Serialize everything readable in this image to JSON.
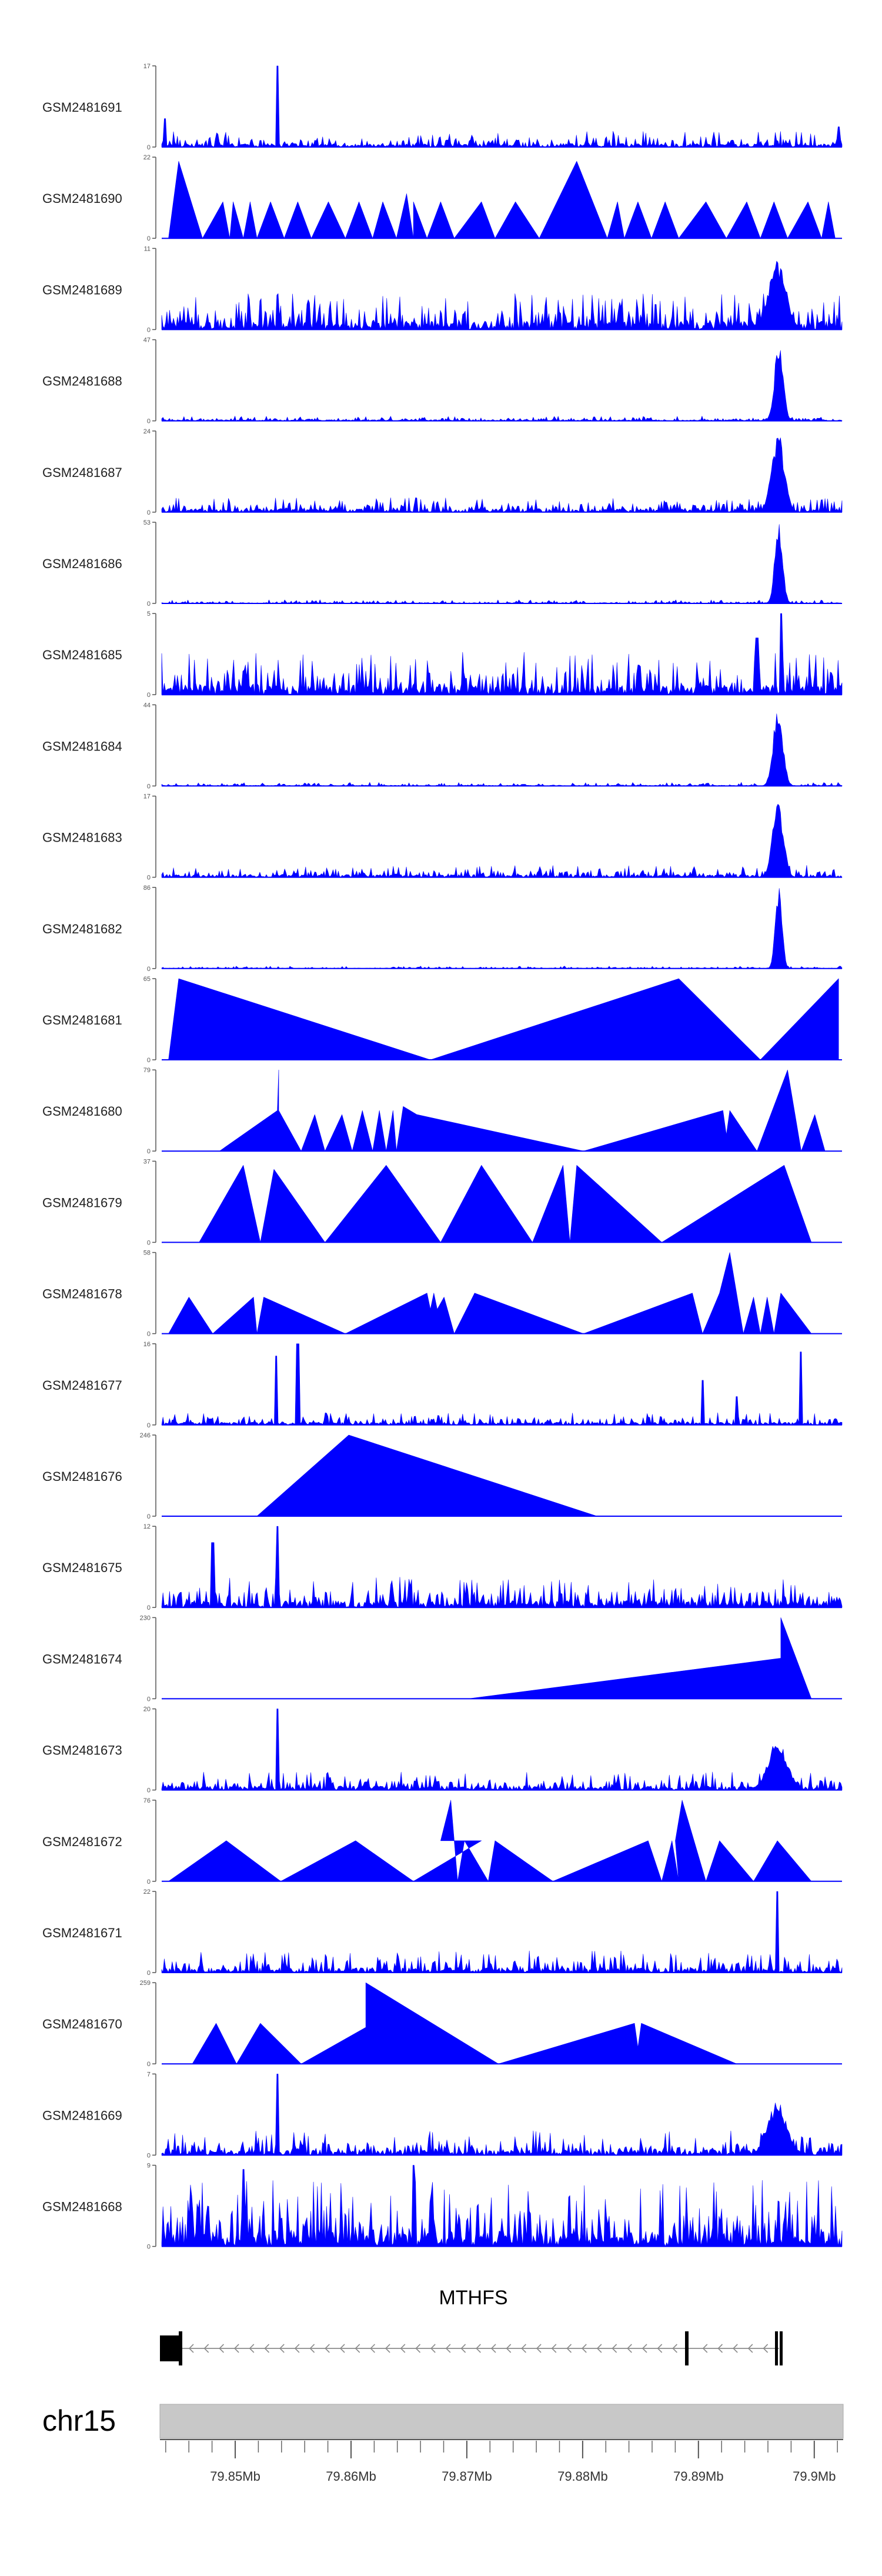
{
  "chart_data": {
    "type": "area",
    "title": "",
    "gene": "MTHFS",
    "chromosome": "chr15",
    "x_ticks": [
      "79.85Mb",
      "79.86Mb",
      "79.87Mb",
      "79.88Mb",
      "79.89Mb",
      "79.9Mb"
    ],
    "x_tick_values": [
      79.85,
      79.86,
      79.87,
      79.88,
      79.89,
      79.9
    ],
    "xlim": [
      79.8435,
      79.9025
    ],
    "colors": {
      "fill": "#0000ff",
      "axis": "#555555",
      "gene": "#000000",
      "ideogram": "#c8c8c8"
    },
    "series": [
      {
        "name": "GSM2481691",
        "ymax": "17",
        "profile": "noise",
        "seed": 91,
        "base": 0.13,
        "spikes": [
          [
            0.17,
            1.0
          ],
          [
            0.005,
            0.35
          ],
          [
            0.995,
            0.25
          ]
        ]
      },
      {
        "name": "GSM2481690",
        "ymax": "22",
        "profile": "tri",
        "points": [
          [
            0.01,
            0
          ],
          [
            0.025,
            0.95
          ],
          [
            0.06,
            0
          ],
          [
            0.09,
            0.45
          ],
          [
            0.1,
            0
          ],
          [
            0.105,
            0.45
          ],
          [
            0.12,
            0
          ],
          [
            0.13,
            0.45
          ],
          [
            0.14,
            0
          ],
          [
            0.16,
            0.45
          ],
          [
            0.18,
            0
          ],
          [
            0.2,
            0.45
          ],
          [
            0.22,
            0
          ],
          [
            0.245,
            0.45
          ],
          [
            0.27,
            0
          ],
          [
            0.29,
            0.45
          ],
          [
            0.31,
            0
          ],
          [
            0.325,
            0.45
          ],
          [
            0.345,
            0
          ],
          [
            0.36,
            0.55
          ],
          [
            0.37,
            0
          ],
          [
            0.37,
            0.45
          ],
          [
            0.39,
            0
          ],
          [
            0.41,
            0.45
          ],
          [
            0.43,
            0
          ],
          [
            0.47,
            0.45
          ],
          [
            0.49,
            0
          ],
          [
            0.52,
            0.45
          ],
          [
            0.555,
            0
          ],
          [
            0.61,
            0.95
          ],
          [
            0.655,
            0
          ],
          [
            0.67,
            0.45
          ],
          [
            0.68,
            0
          ],
          [
            0.7,
            0.45
          ],
          [
            0.72,
            0
          ],
          [
            0.74,
            0.45
          ],
          [
            0.76,
            0
          ],
          [
            0.8,
            0.45
          ],
          [
            0.83,
            0
          ],
          [
            0.86,
            0.45
          ],
          [
            0.88,
            0
          ],
          [
            0.9,
            0.45
          ],
          [
            0.92,
            0
          ],
          [
            0.95,
            0.45
          ],
          [
            0.97,
            0
          ],
          [
            0.98,
            0.45
          ],
          [
            0.99,
            0
          ]
        ]
      },
      {
        "name": "GSM2481689",
        "ymax": "11",
        "profile": "noise",
        "seed": 89,
        "base": 0.3,
        "spikes": [],
        "peak": [
          0.905,
          0.018,
          0.85
        ]
      },
      {
        "name": "GSM2481688",
        "ymax": "47",
        "profile": "noise",
        "seed": 88,
        "base": 0.04,
        "spikes": [],
        "peak": [
          0.907,
          0.009,
          0.95
        ]
      },
      {
        "name": "GSM2481687",
        "ymax": "24",
        "profile": "noise",
        "seed": 87,
        "base": 0.12,
        "spikes": [],
        "peak": [
          0.906,
          0.013,
          0.95
        ]
      },
      {
        "name": "GSM2481686",
        "ymax": "53",
        "profile": "noise",
        "seed": 86,
        "base": 0.03,
        "spikes": [],
        "peak": [
          0.907,
          0.008,
          0.98
        ]
      },
      {
        "name": "GSM2481685",
        "ymax": "5",
        "profile": "noise",
        "seed": 85,
        "base": 0.35,
        "spikes": [
          [
            0.91,
            1.0
          ],
          [
            0.875,
            0.7
          ]
        ]
      },
      {
        "name": "GSM2481684",
        "ymax": "44",
        "profile": "noise",
        "seed": 84,
        "base": 0.03,
        "spikes": [],
        "peak": [
          0.906,
          0.01,
          0.95
        ]
      },
      {
        "name": "GSM2481683",
        "ymax": "17",
        "profile": "noise",
        "seed": 83,
        "base": 0.1,
        "spikes": [],
        "peak": [
          0.906,
          0.011,
          0.95
        ]
      },
      {
        "name": "GSM2481682",
        "ymax": "86",
        "profile": "noise",
        "seed": 82,
        "base": 0.02,
        "spikes": [],
        "peak": [
          0.907,
          0.007,
          0.98
        ]
      },
      {
        "name": "GSM2481681",
        "ymax": "65",
        "profile": "tri",
        "points": [
          [
            0.01,
            0
          ],
          [
            0.025,
            1.0
          ],
          [
            0.395,
            0
          ],
          [
            0.76,
            1.0
          ],
          [
            0.88,
            0
          ],
          [
            0.995,
            1.0
          ],
          [
            0.995,
            0
          ]
        ]
      },
      {
        "name": "GSM2481680",
        "ymax": "79",
        "profile": "tri",
        "points": [
          [
            0.085,
            0
          ],
          [
            0.17,
            0.5
          ],
          [
            0.172,
            1.0
          ],
          [
            0.172,
            0.5
          ],
          [
            0.205,
            0
          ],
          [
            0.225,
            0.45
          ],
          [
            0.24,
            0
          ],
          [
            0.265,
            0.45
          ],
          [
            0.28,
            0
          ],
          [
            0.295,
            0.5
          ],
          [
            0.31,
            0
          ],
          [
            0.32,
            0.5
          ],
          [
            0.33,
            0
          ],
          [
            0.34,
            0.5
          ],
          [
            0.345,
            0
          ],
          [
            0.355,
            0.55
          ],
          [
            0.375,
            0.45
          ],
          [
            0.62,
            0
          ],
          [
            0.825,
            0.5
          ],
          [
            0.83,
            0.2
          ],
          [
            0.835,
            0.5
          ],
          [
            0.875,
            0
          ],
          [
            0.92,
            1.0
          ],
          [
            0.94,
            0
          ],
          [
            0.96,
            0.45
          ],
          [
            0.975,
            0
          ]
        ]
      },
      {
        "name": "GSM2481679",
        "ymax": "37",
        "profile": "tri",
        "points": [
          [
            0.055,
            0
          ],
          [
            0.12,
            0.95
          ],
          [
            0.145,
            0
          ],
          [
            0.165,
            0.9
          ],
          [
            0.24,
            0
          ],
          [
            0.33,
            0.95
          ],
          [
            0.41,
            0
          ],
          [
            0.47,
            0.95
          ],
          [
            0.545,
            0
          ],
          [
            0.59,
            0.95
          ],
          [
            0.6,
            0
          ],
          [
            0.61,
            0.95
          ],
          [
            0.735,
            0
          ],
          [
            0.915,
            0.95
          ],
          [
            0.955,
            0
          ]
        ]
      },
      {
        "name": "GSM2481678",
        "ymax": "58",
        "profile": "tri",
        "points": [
          [
            0.01,
            0
          ],
          [
            0.04,
            0.45
          ],
          [
            0.075,
            0
          ],
          [
            0.135,
            0.45
          ],
          [
            0.14,
            0
          ],
          [
            0.15,
            0.45
          ],
          [
            0.27,
            0
          ],
          [
            0.39,
            0.5
          ],
          [
            0.395,
            0.3
          ],
          [
            0.4,
            0.5
          ],
          [
            0.405,
            0.3
          ],
          [
            0.415,
            0.45
          ],
          [
            0.43,
            0
          ],
          [
            0.46,
            0.5
          ],
          [
            0.62,
            0
          ],
          [
            0.78,
            0.5
          ],
          [
            0.795,
            0
          ],
          [
            0.82,
            0.5
          ],
          [
            0.835,
            1.0
          ],
          [
            0.855,
            0
          ],
          [
            0.87,
            0.45
          ],
          [
            0.88,
            0
          ],
          [
            0.89,
            0.45
          ],
          [
            0.9,
            0
          ],
          [
            0.91,
            0.5
          ],
          [
            0.955,
            0
          ]
        ]
      },
      {
        "name": "GSM2481677",
        "ymax": "16",
        "profile": "noise",
        "seed": 77,
        "base": 0.1,
        "spikes": [
          [
            0.168,
            0.85
          ],
          [
            0.2,
            1.0
          ],
          [
            0.795,
            0.55
          ],
          [
            0.94,
            0.9
          ],
          [
            0.845,
            0.35
          ]
        ]
      },
      {
        "name": "GSM2481676",
        "ymax": "246",
        "profile": "tri",
        "points": [
          [
            0.14,
            0
          ],
          [
            0.275,
            1.0
          ],
          [
            0.64,
            0
          ]
        ]
      },
      {
        "name": "GSM2481675",
        "ymax": "12",
        "profile": "noise",
        "seed": 75,
        "base": 0.25,
        "spikes": [
          [
            0.17,
            1.0
          ],
          [
            0.075,
            0.8
          ]
        ]
      },
      {
        "name": "GSM2481674",
        "ymax": "230",
        "profile": "tri",
        "points": [
          [
            0.45,
            0
          ],
          [
            0.91,
            0.5
          ],
          [
            0.91,
            1.0
          ],
          [
            0.955,
            0
          ]
        ]
      },
      {
        "name": "GSM2481673",
        "ymax": "20",
        "profile": "noise",
        "seed": 73,
        "base": 0.15,
        "spikes": [
          [
            0.17,
            1.0
          ]
        ],
        "peak": [
          0.905,
          0.02,
          0.6
        ]
      },
      {
        "name": "GSM2481672",
        "ymax": "76",
        "profile": "tri",
        "points": [
          [
            0.01,
            0
          ],
          [
            0.095,
            0.5
          ],
          [
            0.175,
            0
          ],
          [
            0.285,
            0.5
          ],
          [
            0.37,
            0
          ],
          [
            0.47,
            0.5
          ],
          [
            0.41,
            0.5
          ],
          [
            0.425,
            1.0
          ],
          [
            0.435,
            0
          ],
          [
            0.445,
            0.5
          ],
          [
            0.48,
            0
          ],
          [
            0.49,
            0.5
          ],
          [
            0.575,
            0
          ],
          [
            0.715,
            0.5
          ],
          [
            0.735,
            0
          ],
          [
            0.75,
            0.5
          ],
          [
            0.76,
            0
          ],
          [
            0.755,
            0.5
          ],
          [
            0.765,
            1.0
          ],
          [
            0.8,
            0
          ],
          [
            0.82,
            0.5
          ],
          [
            0.87,
            0
          ],
          [
            0.905,
            0.5
          ],
          [
            0.955,
            0
          ]
        ]
      },
      {
        "name": "GSM2481671",
        "ymax": "22",
        "profile": "noise",
        "seed": 71,
        "base": 0.18,
        "spikes": [
          [
            0.905,
            1.0
          ]
        ]
      },
      {
        "name": "GSM2481670",
        "ymax": "259",
        "profile": "tri",
        "points": [
          [
            0.045,
            0
          ],
          [
            0.08,
            0.5
          ],
          [
            0.11,
            0
          ],
          [
            0.145,
            0.5
          ],
          [
            0.205,
            0
          ],
          [
            0.3,
            0.45
          ],
          [
            0.3,
            1.0
          ],
          [
            0.495,
            0
          ],
          [
            0.695,
            0.5
          ],
          [
            0.7,
            0.2
          ],
          [
            0.705,
            0.5
          ],
          [
            0.845,
            0
          ]
        ]
      },
      {
        "name": "GSM2481669",
        "ymax": "7",
        "profile": "noise",
        "seed": 69,
        "base": 0.2,
        "spikes": [
          [
            0.17,
            1.0
          ]
        ],
        "peak": [
          0.905,
          0.02,
          0.65
        ]
      },
      {
        "name": "GSM2481668",
        "ymax": "9",
        "profile": "noise",
        "seed": 68,
        "base": 0.55,
        "spikes": [
          [
            0.37,
            1.0
          ],
          [
            0.12,
            0.95
          ]
        ]
      }
    ]
  }
}
